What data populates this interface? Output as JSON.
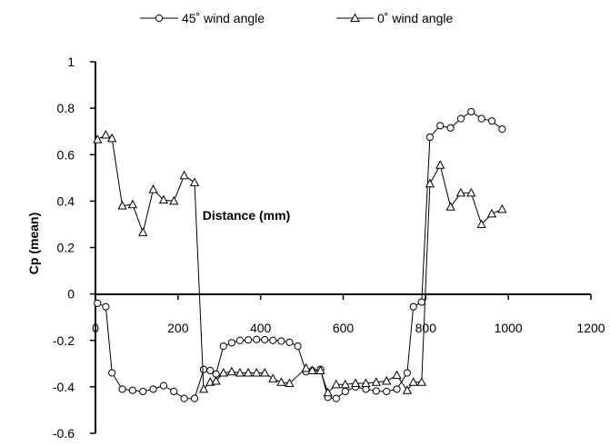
{
  "chart_data": {
    "type": "line",
    "title": "",
    "xlabel": "Distance (mm)",
    "ylabel": "Cp (mean)",
    "xlim": [
      0,
      1200
    ],
    "ylim": [
      -0.6,
      1
    ],
    "x_ticks": [
      0,
      200,
      400,
      600,
      800,
      1000,
      1200
    ],
    "x_tick_labels": [
      "0",
      "200",
      "400",
      "600",
      "800",
      "1000",
      "1200"
    ],
    "y_ticks": [
      -0.6,
      -0.4,
      -0.2,
      0,
      0.2,
      0.4,
      0.6,
      0.8,
      1
    ],
    "y_tick_labels": [
      "-0.6",
      "-0.4",
      "-0.2",
      "0",
      "0.2",
      "0.4",
      "0.6",
      "0.8",
      "1"
    ],
    "grid": false,
    "legend_position": "top",
    "series": [
      {
        "name": "45˚ wind angle",
        "marker": "circle",
        "color": "#000000",
        "points": [
          [
            5,
            -0.04
          ],
          [
            25,
            -0.055
          ],
          [
            40,
            -0.34
          ],
          [
            65,
            -0.41
          ],
          [
            90,
            -0.415
          ],
          [
            115,
            -0.42
          ],
          [
            140,
            -0.41
          ],
          [
            165,
            -0.395
          ],
          [
            190,
            -0.42
          ],
          [
            215,
            -0.45
          ],
          [
            240,
            -0.45
          ],
          [
            262,
            -0.325
          ],
          [
            278,
            -0.33
          ],
          [
            292,
            -0.345
          ],
          [
            310,
            -0.225
          ],
          [
            330,
            -0.21
          ],
          [
            350,
            -0.2
          ],
          [
            370,
            -0.198
          ],
          [
            390,
            -0.196
          ],
          [
            410,
            -0.197
          ],
          [
            430,
            -0.2
          ],
          [
            450,
            -0.203
          ],
          [
            470,
            -0.208
          ],
          [
            490,
            -0.225
          ],
          [
            510,
            -0.335
          ],
          [
            525,
            -0.33
          ],
          [
            545,
            -0.325
          ],
          [
            563,
            -0.445
          ],
          [
            583,
            -0.45
          ],
          [
            605,
            -0.42
          ],
          [
            630,
            -0.4
          ],
          [
            655,
            -0.41
          ],
          [
            680,
            -0.418
          ],
          [
            705,
            -0.42
          ],
          [
            730,
            -0.41
          ],
          [
            755,
            -0.34
          ],
          [
            770,
            -0.055
          ],
          [
            790,
            -0.035
          ],
          [
            810,
            0.675
          ],
          [
            835,
            0.725
          ],
          [
            860,
            0.715
          ],
          [
            885,
            0.755
          ],
          [
            910,
            0.785
          ],
          [
            935,
            0.755
          ],
          [
            960,
            0.745
          ],
          [
            985,
            0.71
          ]
        ]
      },
      {
        "name": "0˚ wind angle",
        "marker": "triangle",
        "color": "#000000",
        "points": [
          [
            5,
            0.665
          ],
          [
            25,
            0.685
          ],
          [
            40,
            0.67
          ],
          [
            65,
            0.38
          ],
          [
            90,
            0.385
          ],
          [
            115,
            0.265
          ],
          [
            140,
            0.45
          ],
          [
            165,
            0.405
          ],
          [
            190,
            0.4
          ],
          [
            215,
            0.51
          ],
          [
            240,
            0.48
          ],
          [
            262,
            -0.41
          ],
          [
            278,
            -0.38
          ],
          [
            292,
            -0.375
          ],
          [
            310,
            -0.34
          ],
          [
            330,
            -0.335
          ],
          [
            350,
            -0.34
          ],
          [
            370,
            -0.34
          ],
          [
            390,
            -0.34
          ],
          [
            410,
            -0.34
          ],
          [
            430,
            -0.365
          ],
          [
            450,
            -0.38
          ],
          [
            470,
            -0.385
          ],
          [
            510,
            -0.32
          ],
          [
            525,
            -0.33
          ],
          [
            545,
            -0.33
          ],
          [
            563,
            -0.425
          ],
          [
            583,
            -0.39
          ],
          [
            605,
            -0.39
          ],
          [
            630,
            -0.385
          ],
          [
            655,
            -0.385
          ],
          [
            680,
            -0.38
          ],
          [
            705,
            -0.375
          ],
          [
            730,
            -0.35
          ],
          [
            755,
            -0.415
          ],
          [
            770,
            -0.38
          ],
          [
            790,
            -0.38
          ],
          [
            810,
            0.475
          ],
          [
            835,
            0.555
          ],
          [
            860,
            0.375
          ],
          [
            885,
            0.435
          ],
          [
            910,
            0.435
          ],
          [
            935,
            0.3
          ],
          [
            960,
            0.345
          ],
          [
            985,
            0.365
          ]
        ]
      }
    ]
  }
}
